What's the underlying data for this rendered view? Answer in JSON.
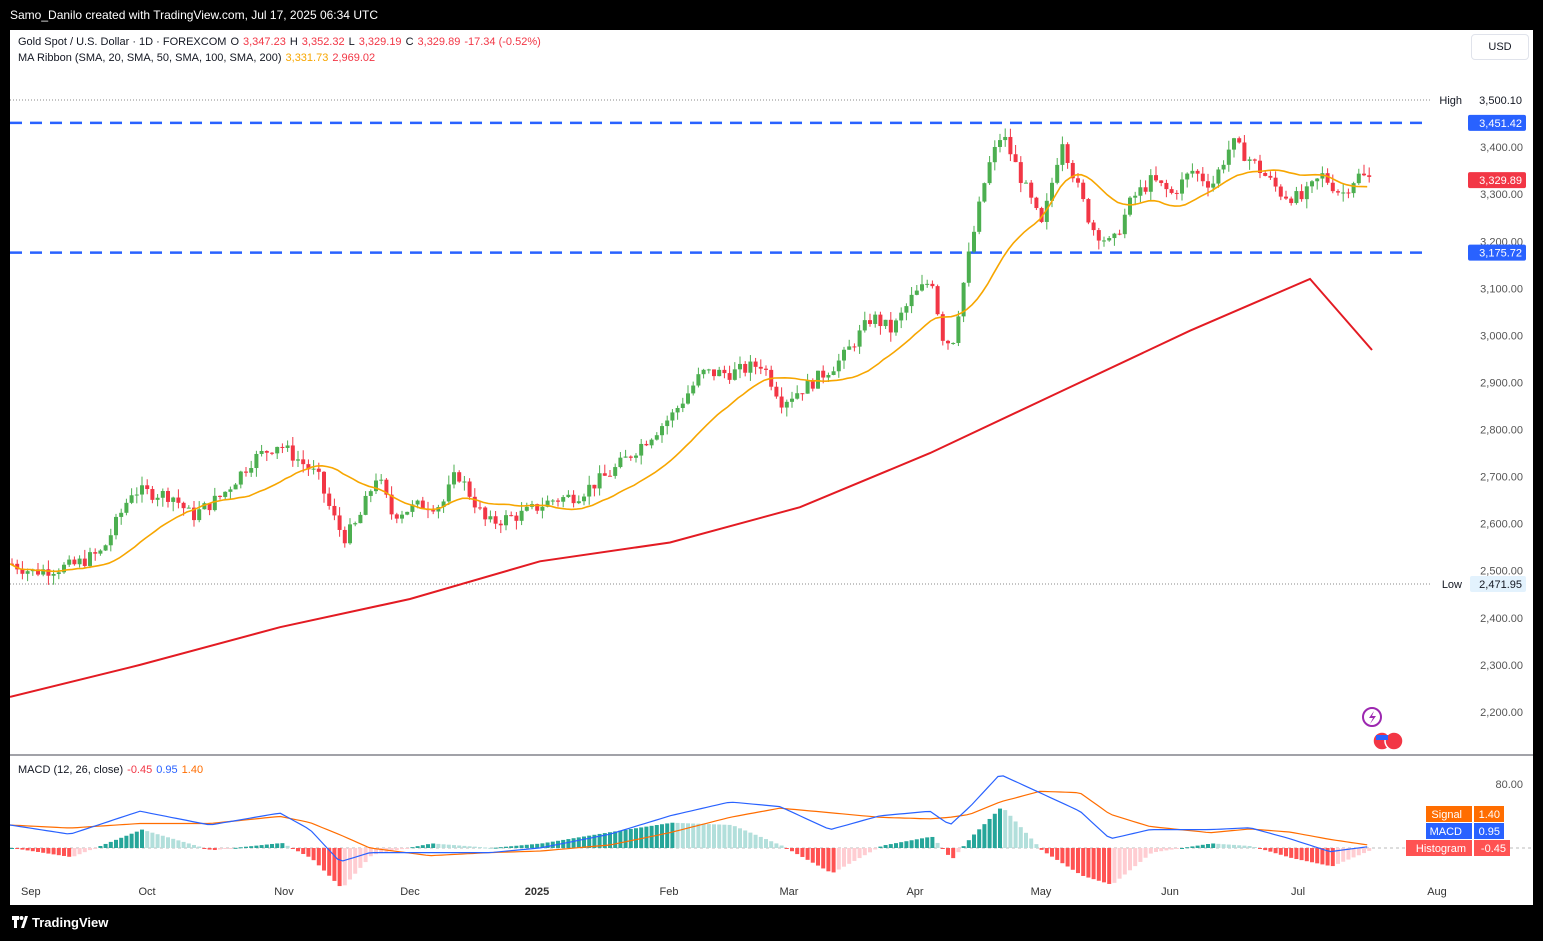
{
  "header": {
    "attribution": "Samo_Danilo created with TradingView.com, Jul 17, 2025 06:34 UTC"
  },
  "legend": {
    "symbol": "Gold Spot / U.S. Dollar · 1D · FOREXCOM",
    "o_label": "O",
    "o": "3,347.23",
    "h_label": "H",
    "h": "3,352.32",
    "l_label": "L",
    "l": "3,329.19",
    "c_label": "C",
    "c": "3,329.89",
    "change": "-17.34 (-0.52%)",
    "ma_ribbon": "MA Ribbon (SMA, 20, SMA, 50, SMA, 100, SMA, 200)",
    "ma20": "3,331.73",
    "ma200": "2,969.02"
  },
  "currency_button": "USD",
  "chart_data": {
    "type": "candlestick",
    "price_axis": {
      "ticks": [
        "3,400.00",
        "3,300.00",
        "3,200.00",
        "3,100.00",
        "3,000.00",
        "2,900.00",
        "2,800.00",
        "2,700.00",
        "2,600.00",
        "2,500.00",
        "2,400.00",
        "2,300.00",
        "2,200.00"
      ],
      "range": [
        2140,
        3610
      ]
    },
    "time_axis": {
      "labels": [
        "Sep",
        "Oct",
        "Nov",
        "Dec",
        "2025",
        "Feb",
        "Mar",
        "Apr",
        "May",
        "Jun",
        "Jul",
        "Aug"
      ]
    },
    "markers": {
      "high_label": "High",
      "high": "3,500.10",
      "low_label": "Low",
      "low": "2,471.95",
      "resistance": "3,451.42",
      "support": "3,175.72",
      "last": "3,329.89"
    },
    "series": [
      {
        "name": "SMA 20",
        "color": "#f7a600"
      },
      {
        "name": "SMA 200",
        "color": "#e31b23"
      }
    ],
    "colors": {
      "up": "#4caf50",
      "down": "#f23645",
      "level": "#2962ff"
    },
    "macd": {
      "label": "MACD (12, 26, close)",
      "hist": "-0.45",
      "macd": "0.95",
      "signal": "1.40",
      "axis_tick": "80.00",
      "tags": {
        "signal": "Signal",
        "macd": "MACD",
        "hist": "Histogram"
      },
      "colors": {
        "macd": "#2962ff",
        "signal": "#ff6d00",
        "hist_up": "#26a69a",
        "hist_down": "#ff5252"
      }
    }
  },
  "footer": {
    "brand": "TradingView"
  }
}
